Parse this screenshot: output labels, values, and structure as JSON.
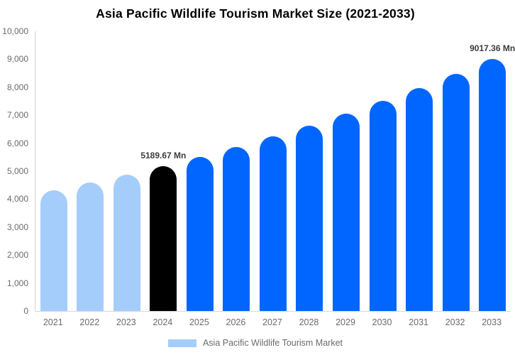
{
  "title": "Asia Pacific Wildlife Tourism Market Size (2021-2033)",
  "colors": {
    "historical_bar": "#a5cdfb",
    "base_year_bar": "#000000",
    "forecast_bar": "#0066ff",
    "axis_text": "#6b6b6b",
    "axis_line": "#d6d6d6",
    "annotation_text": "#3c3c3c",
    "title_text": "#000000"
  },
  "chart_data": {
    "type": "bar",
    "title": "Asia Pacific Wildlife Tourism Market Size (2021-2033)",
    "xlabel": "",
    "ylabel": "",
    "unit": "Mn",
    "ylim": [
      0,
      10000
    ],
    "grid": false,
    "categories": [
      "2021",
      "2022",
      "2023",
      "2024",
      "2025",
      "2026",
      "2027",
      "2028",
      "2029",
      "2030",
      "2031",
      "2032",
      "2033"
    ],
    "values": [
      4316,
      4590,
      4880,
      5189.67,
      5518,
      5868,
      6239,
      6634,
      7054,
      7501,
      7976,
      8482,
      9017.36
    ],
    "bar_colors": [
      "#a5cdfb",
      "#a5cdfb",
      "#a5cdfb",
      "#000000",
      "#0066ff",
      "#0066ff",
      "#0066ff",
      "#0066ff",
      "#0066ff",
      "#0066ff",
      "#0066ff",
      "#0066ff",
      "#0066ff"
    ],
    "yticks": [
      "0",
      "1,000",
      "2,000",
      "3,000",
      "4,000",
      "5,000",
      "6,000",
      "7,000",
      "8,000",
      "9,000",
      "10,000"
    ],
    "annotations": [
      {
        "index": 3,
        "category": "2024",
        "text": "5189.67 Mn"
      },
      {
        "index": 12,
        "category": "2033",
        "text": "9017.36 Mn"
      }
    ],
    "legend": {
      "position": "bottom",
      "label": "Asia Pacific Wildlife Tourism Market",
      "swatch_color": "#a5cdfb"
    }
  }
}
